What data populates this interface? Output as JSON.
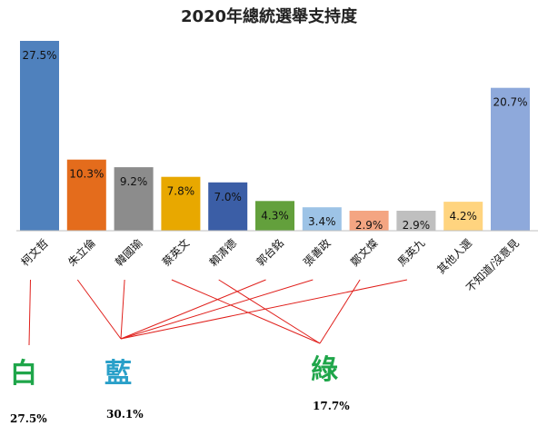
{
  "chart_data": {
    "type": "bar",
    "title": "2020年總統選舉支持度",
    "categories": [
      "柯文哲",
      "朱立倫",
      "韓國瑜",
      "蔡英文",
      "賴清德",
      "郭台銘",
      "張善政",
      "鄭文燦",
      "馬英九",
      "其他人選",
      "不知道/沒意見"
    ],
    "values": [
      27.5,
      10.3,
      9.2,
      7.8,
      7.0,
      4.3,
      3.4,
      2.9,
      2.9,
      4.2,
      20.7
    ],
    "value_labels": [
      "27.5%",
      "10.3%",
      "9.2%",
      "7.8%",
      "7.0%",
      "4.3%",
      "3.4%",
      "2.9%",
      "2.9%",
      "4.2%",
      "20.7%"
    ],
    "colors": [
      "#4f81bd",
      "#e46c1c",
      "#8c8c8c",
      "#e8a800",
      "#3b5ea6",
      "#63a03c",
      "#9dc3e6",
      "#f4a582",
      "#bfbfbf",
      "#ffd47f",
      "#8ea9db"
    ],
    "ylim": [
      0,
      27.5
    ],
    "grid": false,
    "legend": "none"
  },
  "groups": [
    {
      "label": "白",
      "percent": "27.5%",
      "color": "#1fa64a"
    },
    {
      "label": "藍",
      "percent": "30.1%",
      "color": "#2aa0c9"
    },
    {
      "label": "綠",
      "percent": "17.7%",
      "color": "#1fa64a"
    }
  ],
  "group_members": [
    [
      0
    ],
    [
      1,
      2,
      5,
      6,
      8
    ],
    [
      3,
      4,
      7
    ]
  ],
  "line_color": "#e0201c"
}
